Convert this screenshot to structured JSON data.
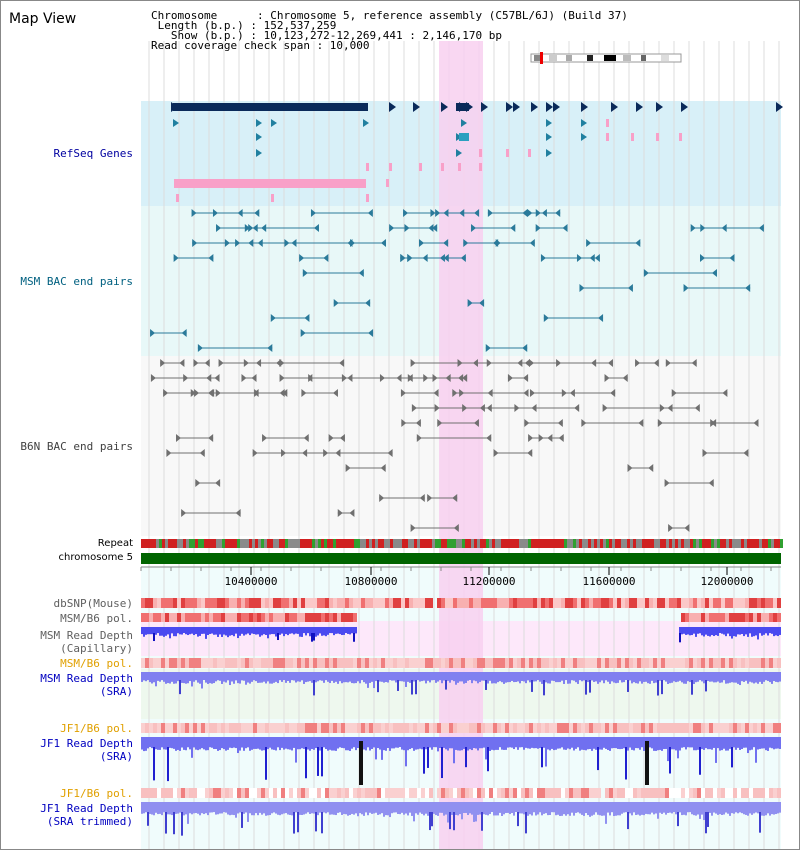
{
  "title": "Map View",
  "info": {
    "chromosome": "Chromosome      : Chromosome 5, reference assembly (C57BL/6J) (Build 37)",
    "length": " Length (b.p.) : 152,537,259",
    "show": "   Show (b.p.) : 10,123,272-12,269,441 : 2,146,170 bp",
    "coverage": "Read coverage check span : 10,000"
  },
  "tracks": {
    "refseq": "RefSeq Genes",
    "msm_bac": "MSM BAC end pairs",
    "b6n_bac": "B6N BAC end pairs",
    "repeat": "Repeat",
    "chromosome": "chromosome 5",
    "dbsnp": "dbSNP(Mouse)",
    "msm_b6_pol_1": "MSM/B6 pol.",
    "msm_read_depth_cap_1": "MSM Read Depth",
    "msm_read_depth_cap_2": "(Capillary)",
    "msm_b6_pol_2": "MSM/B6 pol.",
    "msm_read_depth_sra_1": "MSM Read Depth",
    "msm_read_depth_sra_2": "(SRA)",
    "jf1_b6_pol_1": "JF1/B6 pol.",
    "jf1_read_depth_sra_1": "JF1 Read Depth",
    "jf1_read_depth_sra_2": "(SRA)",
    "jf1_b6_pol_2": "JF1/B6 pol.",
    "jf1_read_depth_trim_1": "JF1 Read Depth",
    "jf1_read_depth_trim_2": "(SRA trimmed)"
  },
  "axis": {
    "ticks": [
      "10400000",
      "10800000",
      "11200000",
      "11600000",
      "12000000"
    ]
  },
  "colors": {
    "refseq_label": "#0000a0",
    "msm_bac_label": "#006080",
    "b6n_bac_label": "#404040",
    "pol_label": "#e0a000",
    "depth_label": "#0000c0",
    "highlight": "#f8d0f0"
  }
}
